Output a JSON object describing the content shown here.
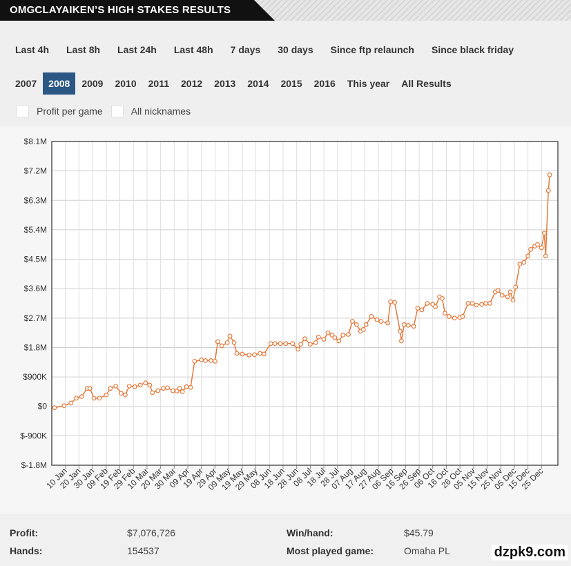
{
  "header": {
    "title": "OMGCLAYAIKEN’S HIGH STAKES RESULTS"
  },
  "filters": {
    "periods": [
      "Last 4h",
      "Last 8h",
      "Last 24h",
      "Last 48h",
      "7 days",
      "30 days",
      "Since ftp relaunch",
      "Since black friday"
    ],
    "years": [
      "2007",
      "2008",
      "2009",
      "2010",
      "2011",
      "2012",
      "2013",
      "2014",
      "2015",
      "2016",
      "This year",
      "All Results"
    ],
    "selected_year": 1,
    "checkboxes": [
      "Profit per game",
      "All nicknames"
    ]
  },
  "chart_data": {
    "type": "line",
    "color": "#e5793a",
    "grid": true,
    "markers": true,
    "x": [
      2,
      9,
      14,
      18,
      22,
      26,
      28,
      31,
      35,
      40,
      43,
      47,
      51,
      54,
      57,
      61,
      65,
      69,
      72,
      74,
      78,
      82,
      85,
      89,
      92,
      94,
      96,
      99,
      102,
      105,
      110,
      113,
      117,
      120,
      122,
      125,
      129,
      131,
      134,
      136,
      140,
      145,
      149,
      153,
      156,
      161,
      164,
      168,
      172,
      177,
      181,
      183,
      186,
      190,
      194,
      196,
      200,
      203,
      206,
      208,
      211,
      214,
      218,
      221,
      224,
      227,
      229,
      231,
      235,
      239,
      242,
      247,
      249,
      252,
      256,
      257,
      259,
      262,
      266,
      269,
      272,
      276,
      280,
      282,
      285,
      287,
      289,
      292,
      296,
      300,
      302,
      306,
      309,
      312,
      316,
      319,
      322,
      326,
      328,
      331,
      335,
      337,
      339,
      341,
      344,
      347,
      350,
      352,
      355,
      357,
      360,
      362,
      363,
      365,
      366
    ],
    "values": [
      -40000,
      20000,
      100000,
      250000,
      300000,
      550000,
      550000,
      250000,
      250000,
      350000,
      550000,
      620000,
      400000,
      350000,
      620000,
      600000,
      650000,
      720000,
      650000,
      420000,
      480000,
      550000,
      570000,
      480000,
      470000,
      550000,
      450000,
      600000,
      580000,
      1380000,
      1420000,
      1400000,
      1400000,
      1380000,
      1980000,
      1850000,
      1950000,
      2150000,
      1950000,
      1620000,
      1600000,
      1570000,
      1580000,
      1620000,
      1600000,
      1920000,
      1920000,
      1920000,
      1920000,
      1920000,
      1750000,
      1900000,
      2070000,
      1900000,
      1950000,
      2120000,
      2050000,
      2250000,
      2180000,
      2100000,
      2000000,
      2180000,
      2200000,
      2600000,
      2500000,
      2300000,
      2350000,
      2500000,
      2750000,
      2650000,
      2600000,
      2550000,
      3200000,
      3180000,
      2300000,
      2000000,
      2500000,
      2480000,
      2450000,
      3000000,
      2950000,
      3150000,
      3120000,
      3050000,
      3350000,
      3300000,
      2850000,
      2750000,
      2700000,
      2720000,
      2750000,
      3150000,
      3150000,
      3100000,
      3120000,
      3150000,
      3150000,
      3500000,
      3550000,
      3400000,
      3350000,
      3500000,
      3250000,
      3650000,
      4350000,
      4400000,
      4600000,
      4800000,
      4900000,
      4950000,
      4850000,
      5300000,
      4600000,
      6600000,
      7080000
    ],
    "xlim": [
      0,
      372
    ],
    "xticks": [
      {
        "value": 10,
        "label": "10 Jan"
      },
      {
        "value": 20,
        "label": "20 Jan"
      },
      {
        "value": 30,
        "label": "30 Jan"
      },
      {
        "value": 40,
        "label": "09 Feb"
      },
      {
        "value": 50,
        "label": "19 Feb"
      },
      {
        "value": 60,
        "label": "29 Feb"
      },
      {
        "value": 70,
        "label": "10 Mar"
      },
      {
        "value": 80,
        "label": "20 Mar"
      },
      {
        "value": 90,
        "label": "30 Mar"
      },
      {
        "value": 100,
        "label": "09 Apr"
      },
      {
        "value": 110,
        "label": "19 Apr"
      },
      {
        "value": 120,
        "label": "29 Apr"
      },
      {
        "value": 130,
        "label": "09 May"
      },
      {
        "value": 140,
        "label": "19 May"
      },
      {
        "value": 150,
        "label": "29 May"
      },
      {
        "value": 160,
        "label": "08 Jun"
      },
      {
        "value": 170,
        "label": "18 Jun"
      },
      {
        "value": 180,
        "label": "28 Jun"
      },
      {
        "value": 190,
        "label": "08 Jul"
      },
      {
        "value": 200,
        "label": "18 Jul"
      },
      {
        "value": 210,
        "label": "28 Jul"
      },
      {
        "value": 220,
        "label": "07 Aug"
      },
      {
        "value": 230,
        "label": "17 Aug"
      },
      {
        "value": 240,
        "label": "27 Aug"
      },
      {
        "value": 250,
        "label": "06 Sep"
      },
      {
        "value": 260,
        "label": "16 Sep"
      },
      {
        "value": 270,
        "label": "26 Sep"
      },
      {
        "value": 280,
        "label": "06 Oct"
      },
      {
        "value": 290,
        "label": "16 Oct"
      },
      {
        "value": 300,
        "label": "26 Oct"
      },
      {
        "value": 310,
        "label": "05 Nov"
      },
      {
        "value": 320,
        "label": "15 Nov"
      },
      {
        "value": 330,
        "label": "25 Nov"
      },
      {
        "value": 340,
        "label": "05 Dec"
      },
      {
        "value": 350,
        "label": "15 Dec"
      },
      {
        "value": 360,
        "label": "25 Dec"
      }
    ],
    "ylim": [
      -1800000,
      8100000
    ],
    "yticks": [
      {
        "value": -1800000,
        "label": "$-1.8M"
      },
      {
        "value": -900000,
        "label": "$-900K"
      },
      {
        "value": 0,
        "label": "$0"
      },
      {
        "value": 900000,
        "label": "$900K"
      },
      {
        "value": 1800000,
        "label": "$1.8M"
      },
      {
        "value": 2700000,
        "label": "$2.7M"
      },
      {
        "value": 3600000,
        "label": "$3.6M"
      },
      {
        "value": 4500000,
        "label": "$4.5M"
      },
      {
        "value": 5400000,
        "label": "$5.4M"
      },
      {
        "value": 6300000,
        "label": "$6.3M"
      },
      {
        "value": 7200000,
        "label": "$7.2M"
      },
      {
        "value": 8100000,
        "label": "$8.1M"
      }
    ]
  },
  "stats": {
    "rows": [
      [
        {
          "label": "Profit:",
          "value": "$7,076,726"
        },
        {
          "label": "Win/hand:",
          "value": "$45.79"
        }
      ],
      [
        {
          "label": "Hands:",
          "value": "154537"
        },
        {
          "label": "Most played game:",
          "value": "Omaha PL"
        }
      ]
    ]
  },
  "watermark": "dzpk9.com"
}
